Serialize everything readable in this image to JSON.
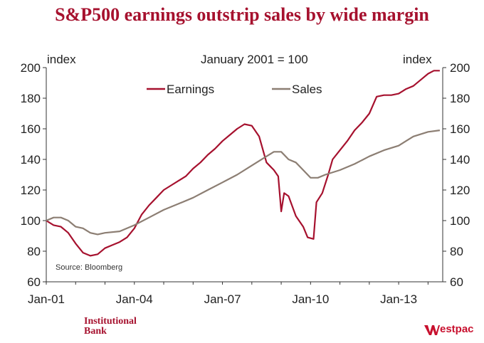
{
  "title": "S&P500 earnings outstrip sales by wide margin",
  "brand": {
    "institutional": "Institutional",
    "bank": "Bank",
    "westpac": "estpac",
    "color": "#A6112E"
  },
  "chart_data": {
    "type": "line",
    "subtitle": "January 2001 = 100",
    "ylabel_left": "index",
    "ylabel_right": "index",
    "source": "Source: Bloomberg",
    "ylim": [
      60,
      200
    ],
    "yticks": [
      60,
      80,
      100,
      120,
      140,
      160,
      180,
      200
    ],
    "xlim": [
      2001.0,
      2014.5
    ],
    "xticks": [
      {
        "label": "Jan-01",
        "value": 2001.0
      },
      {
        "label": "Jan-04",
        "value": 2004.0
      },
      {
        "label": "Jan-07",
        "value": 2007.0
      },
      {
        "label": "Jan-10",
        "value": 2010.0
      },
      {
        "label": "Jan-13",
        "value": 2013.0
      }
    ],
    "series": [
      {
        "name": "Earnings",
        "color": "#A6112E",
        "points": [
          [
            2001.0,
            100
          ],
          [
            2001.25,
            97
          ],
          [
            2001.5,
            96
          ],
          [
            2001.75,
            92
          ],
          [
            2002.0,
            85
          ],
          [
            2002.25,
            79
          ],
          [
            2002.5,
            77
          ],
          [
            2002.75,
            78
          ],
          [
            2003.0,
            82
          ],
          [
            2003.25,
            84
          ],
          [
            2003.5,
            86
          ],
          [
            2003.75,
            89
          ],
          [
            2004.0,
            95
          ],
          [
            2004.25,
            104
          ],
          [
            2004.5,
            110
          ],
          [
            2004.75,
            115
          ],
          [
            2005.0,
            120
          ],
          [
            2005.25,
            123
          ],
          [
            2005.5,
            126
          ],
          [
            2005.75,
            129
          ],
          [
            2006.0,
            134
          ],
          [
            2006.25,
            138
          ],
          [
            2006.5,
            143
          ],
          [
            2006.75,
            147
          ],
          [
            2007.0,
            152
          ],
          [
            2007.25,
            156
          ],
          [
            2007.5,
            160
          ],
          [
            2007.75,
            163
          ],
          [
            2008.0,
            162
          ],
          [
            2008.25,
            155
          ],
          [
            2008.5,
            138
          ],
          [
            2008.75,
            133
          ],
          [
            2008.9,
            129
          ],
          [
            2009.0,
            106
          ],
          [
            2009.1,
            118
          ],
          [
            2009.25,
            116
          ],
          [
            2009.5,
            103
          ],
          [
            2009.75,
            96
          ],
          [
            2009.9,
            89
          ],
          [
            2010.1,
            88
          ],
          [
            2010.2,
            112
          ],
          [
            2010.4,
            118
          ],
          [
            2010.6,
            130
          ],
          [
            2010.75,
            140
          ],
          [
            2011.0,
            146
          ],
          [
            2011.25,
            152
          ],
          [
            2011.5,
            159
          ],
          [
            2011.75,
            164
          ],
          [
            2012.0,
            170
          ],
          [
            2012.25,
            181
          ],
          [
            2012.5,
            182
          ],
          [
            2012.75,
            182
          ],
          [
            2013.0,
            183
          ],
          [
            2013.25,
            186
          ],
          [
            2013.5,
            188
          ],
          [
            2013.75,
            192
          ],
          [
            2014.0,
            196
          ],
          [
            2014.2,
            198
          ],
          [
            2014.4,
            198
          ]
        ]
      },
      {
        "name": "Sales",
        "color": "#8C7E73",
        "points": [
          [
            2001.0,
            100
          ],
          [
            2001.25,
            102
          ],
          [
            2001.5,
            102
          ],
          [
            2001.75,
            100
          ],
          [
            2002.0,
            96
          ],
          [
            2002.25,
            95
          ],
          [
            2002.5,
            92
          ],
          [
            2002.75,
            91
          ],
          [
            2003.0,
            92
          ],
          [
            2003.5,
            93
          ],
          [
            2004.0,
            97
          ],
          [
            2004.5,
            102
          ],
          [
            2005.0,
            107
          ],
          [
            2005.5,
            111
          ],
          [
            2006.0,
            115
          ],
          [
            2006.5,
            120
          ],
          [
            2007.0,
            125
          ],
          [
            2007.5,
            130
          ],
          [
            2008.0,
            136
          ],
          [
            2008.5,
            142
          ],
          [
            2008.75,
            145
          ],
          [
            2009.0,
            145
          ],
          [
            2009.25,
            140
          ],
          [
            2009.5,
            138
          ],
          [
            2009.75,
            133
          ],
          [
            2010.0,
            128
          ],
          [
            2010.25,
            128
          ],
          [
            2010.5,
            130
          ],
          [
            2011.0,
            133
          ],
          [
            2011.5,
            137
          ],
          [
            2012.0,
            142
          ],
          [
            2012.5,
            146
          ],
          [
            2013.0,
            149
          ],
          [
            2013.25,
            152
          ],
          [
            2013.5,
            155
          ],
          [
            2014.0,
            158
          ],
          [
            2014.4,
            159
          ]
        ]
      }
    ]
  }
}
